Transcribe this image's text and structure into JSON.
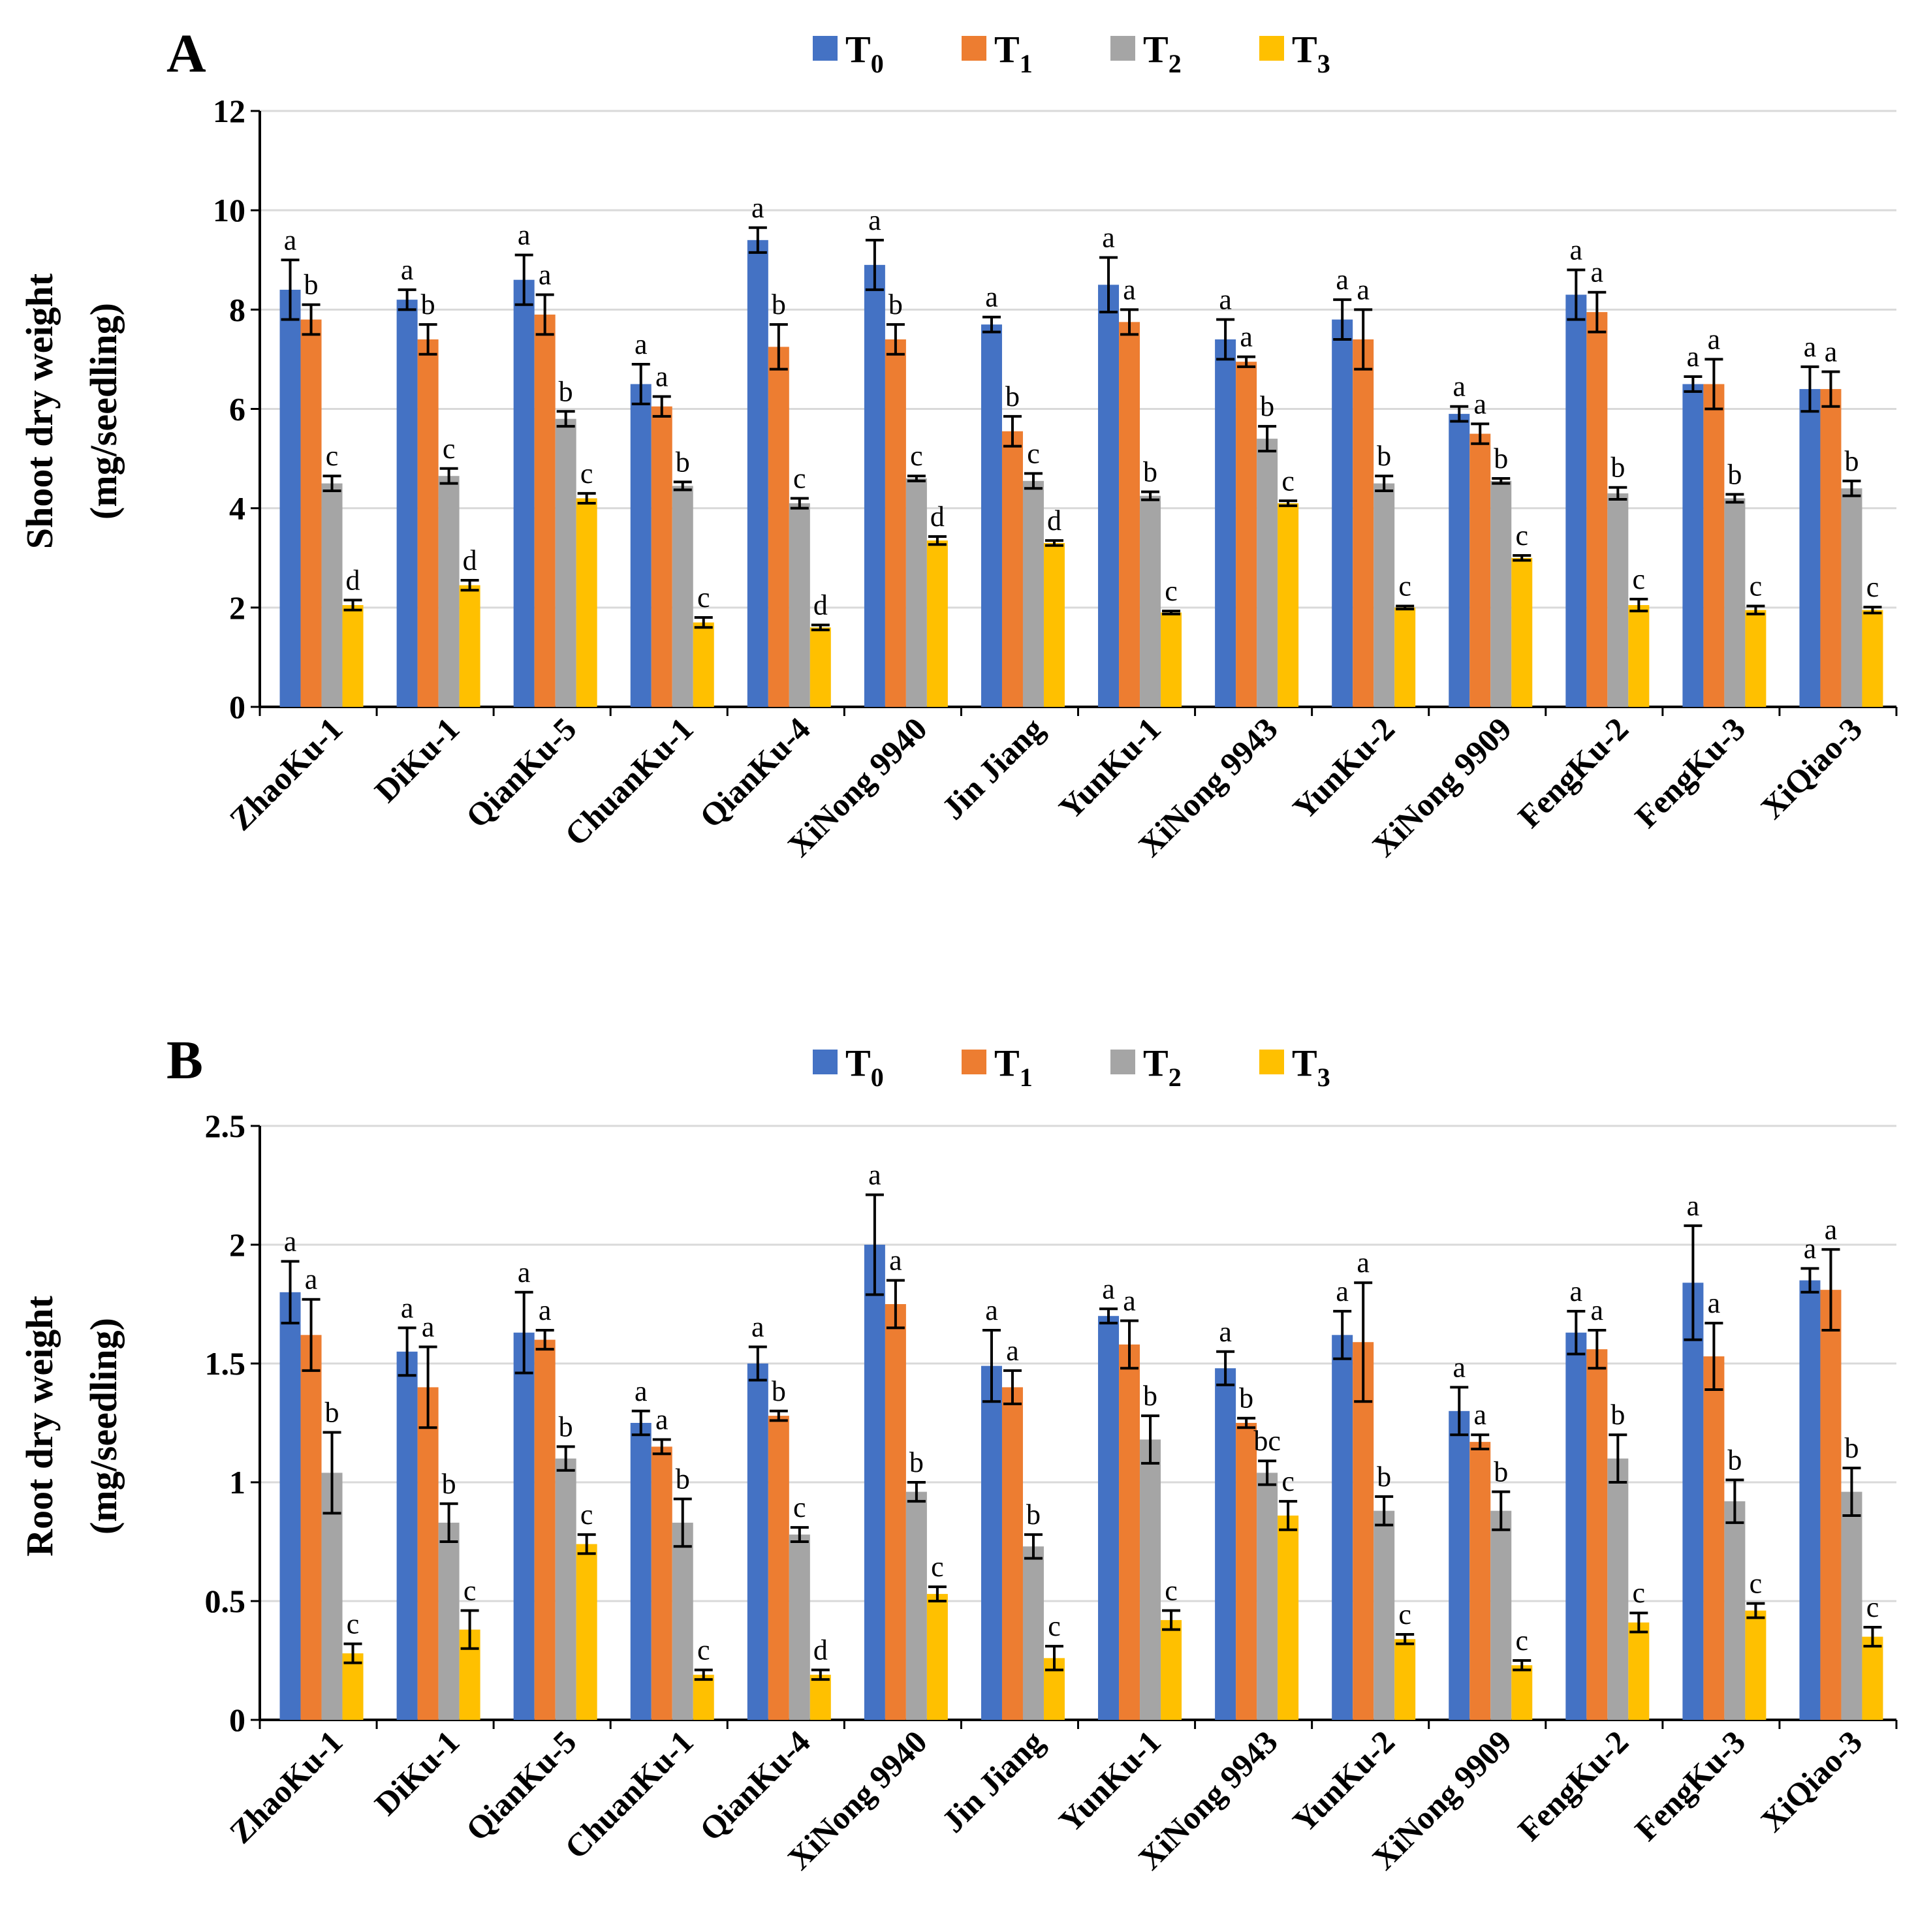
{
  "figure": {
    "colors": {
      "T0": "#4472C4",
      "T1": "#ED7D31",
      "T2": "#A5A5A5",
      "T3": "#FFC000",
      "grid": "#D9D9D9",
      "axis": "#000000"
    },
    "legend": [
      {
        "key": "T0",
        "main": "T",
        "sub": "0"
      },
      {
        "key": "T1",
        "main": "T",
        "sub": "1"
      },
      {
        "key": "T2",
        "main": "T",
        "sub": "2"
      },
      {
        "key": "T3",
        "main": "T",
        "sub": "3"
      }
    ]
  },
  "chart_data": [
    {
      "panel": "A",
      "type": "bar",
      "ylabel_line1": "Shoot dry weight",
      "ylabel_line2": "(mg/seedling)",
      "ylim": [
        0,
        12
      ],
      "yticks": [
        "0",
        "2",
        "4",
        "6",
        "8",
        "10",
        "12"
      ],
      "ytick_values": [
        0,
        2,
        4,
        6,
        8,
        10,
        12
      ],
      "grid": true,
      "legend_position": "top-center",
      "categories": [
        "ZhaoKu-1",
        "DiKu-1",
        "QianKu-5",
        "ChuanKu-1",
        "QianKu-4",
        "XiNong 9940",
        "Jin Jiang",
        "YunKu-1",
        "XiNong 9943",
        "YunKu-2",
        "XiNong 9909",
        "FengKu-2",
        "FengKu-3",
        "XiQiao-3"
      ],
      "series": [
        {
          "name": "T0",
          "values": [
            8.4,
            8.2,
            8.6,
            6.5,
            9.4,
            8.9,
            7.7,
            8.5,
            7.4,
            7.8,
            5.9,
            8.3,
            6.5,
            6.4
          ],
          "errors": [
            0.6,
            0.2,
            0.5,
            0.4,
            0.25,
            0.5,
            0.15,
            0.55,
            0.4,
            0.4,
            0.15,
            0.5,
            0.15,
            0.45
          ],
          "labels": [
            "a",
            "a",
            "a",
            "a",
            "a",
            "a",
            "a",
            "a",
            "a",
            "a",
            "a",
            "a",
            "a",
            "a"
          ]
        },
        {
          "name": "T1",
          "values": [
            7.8,
            7.4,
            7.9,
            6.05,
            7.25,
            7.4,
            5.55,
            7.75,
            6.95,
            7.4,
            5.5,
            7.95,
            6.5,
            6.4
          ],
          "errors": [
            0.3,
            0.3,
            0.4,
            0.2,
            0.45,
            0.3,
            0.3,
            0.25,
            0.1,
            0.6,
            0.2,
            0.4,
            0.5,
            0.35
          ],
          "labels": [
            "b",
            "b",
            "a",
            "a",
            "b",
            "b",
            "b",
            "a",
            "a",
            "a",
            "a",
            "a",
            "a",
            "a"
          ]
        },
        {
          "name": "T2",
          "values": [
            4.5,
            4.65,
            5.8,
            4.45,
            4.1,
            4.6,
            4.55,
            4.25,
            5.4,
            4.5,
            4.55,
            4.3,
            4.2,
            4.4
          ],
          "errors": [
            0.15,
            0.15,
            0.15,
            0.08,
            0.1,
            0.05,
            0.15,
            0.08,
            0.25,
            0.15,
            0.05,
            0.12,
            0.08,
            0.15
          ],
          "labels": [
            "c",
            "c",
            "b",
            "b",
            "c",
            "c",
            "c",
            "b",
            "b",
            "b",
            "b",
            "b",
            "b",
            "b"
          ]
        },
        {
          "name": "T3",
          "values": [
            2.05,
            2.45,
            4.2,
            1.7,
            1.6,
            3.35,
            3.3,
            1.9,
            4.1,
            2.0,
            3.0,
            2.05,
            1.95,
            1.95
          ],
          "errors": [
            0.1,
            0.1,
            0.1,
            0.1,
            0.05,
            0.08,
            0.05,
            0.03,
            0.05,
            0.03,
            0.05,
            0.12,
            0.08,
            0.06
          ],
          "labels": [
            "d",
            "d",
            "c",
            "c",
            "d",
            "d",
            "d",
            "c",
            "c",
            "c",
            "c",
            "c",
            "c",
            "c"
          ]
        }
      ]
    },
    {
      "panel": "B",
      "type": "bar",
      "ylabel_line1": "Root dry weight",
      "ylabel_line2": "(mg/seedling)",
      "ylim": [
        0,
        2.5
      ],
      "yticks": [
        "0",
        "0.5",
        "1",
        "1.5",
        "2",
        "2.5"
      ],
      "ytick_values": [
        0,
        0.5,
        1,
        1.5,
        2,
        2.5
      ],
      "grid": true,
      "legend_position": "top-center",
      "categories": [
        "ZhaoKu-1",
        "DiKu-1",
        "QianKu-5",
        "ChuanKu-1",
        "QianKu-4",
        "XiNong 9940",
        "Jin Jiang",
        "YunKu-1",
        "XiNong 9943",
        "YunKu-2",
        "XiNong 9909",
        "FengKu-2",
        "FengKu-3",
        "XiQiao-3"
      ],
      "series": [
        {
          "name": "T0",
          "values": [
            1.8,
            1.55,
            1.63,
            1.25,
            1.5,
            2.0,
            1.49,
            1.7,
            1.48,
            1.62,
            1.3,
            1.63,
            1.84,
            1.85
          ],
          "errors": [
            0.13,
            0.1,
            0.17,
            0.05,
            0.07,
            0.21,
            0.15,
            0.03,
            0.07,
            0.1,
            0.1,
            0.09,
            0.24,
            0.05
          ],
          "labels": [
            "a",
            "a",
            "a",
            "a",
            "a",
            "a",
            "a",
            "a",
            "a",
            "a",
            "a",
            "a",
            "a",
            "a"
          ]
        },
        {
          "name": "T1",
          "values": [
            1.62,
            1.4,
            1.6,
            1.15,
            1.28,
            1.75,
            1.4,
            1.58,
            1.25,
            1.59,
            1.17,
            1.56,
            1.53,
            1.81
          ],
          "errors": [
            0.15,
            0.17,
            0.04,
            0.03,
            0.02,
            0.1,
            0.07,
            0.1,
            0.02,
            0.25,
            0.03,
            0.08,
            0.14,
            0.17
          ],
          "labels": [
            "a",
            "a",
            "a",
            "a",
            "b",
            "a",
            "a",
            "a",
            "b",
            "a",
            "a",
            "a",
            "a",
            "a"
          ]
        },
        {
          "name": "T2",
          "values": [
            1.04,
            0.83,
            1.1,
            0.83,
            0.78,
            0.96,
            0.73,
            1.18,
            1.04,
            0.88,
            0.88,
            1.1,
            0.92,
            0.96
          ],
          "errors": [
            0.17,
            0.08,
            0.05,
            0.1,
            0.03,
            0.04,
            0.05,
            0.1,
            0.05,
            0.06,
            0.08,
            0.1,
            0.09,
            0.1
          ],
          "labels": [
            "b",
            "b",
            "b",
            "b",
            "c",
            "b",
            "b",
            "b",
            "bc",
            "b",
            "b",
            "b",
            "b",
            "b"
          ]
        },
        {
          "name": "T3",
          "values": [
            0.28,
            0.38,
            0.74,
            0.19,
            0.19,
            0.53,
            0.26,
            0.42,
            0.86,
            0.34,
            0.23,
            0.41,
            0.46,
            0.35
          ],
          "errors": [
            0.04,
            0.08,
            0.04,
            0.02,
            0.02,
            0.03,
            0.05,
            0.04,
            0.06,
            0.02,
            0.02,
            0.04,
            0.03,
            0.04
          ],
          "labels": [
            "c",
            "c",
            "c",
            "c",
            "d",
            "c",
            "c",
            "c",
            "c",
            "c",
            "c",
            "c",
            "c",
            "c"
          ]
        }
      ]
    }
  ]
}
